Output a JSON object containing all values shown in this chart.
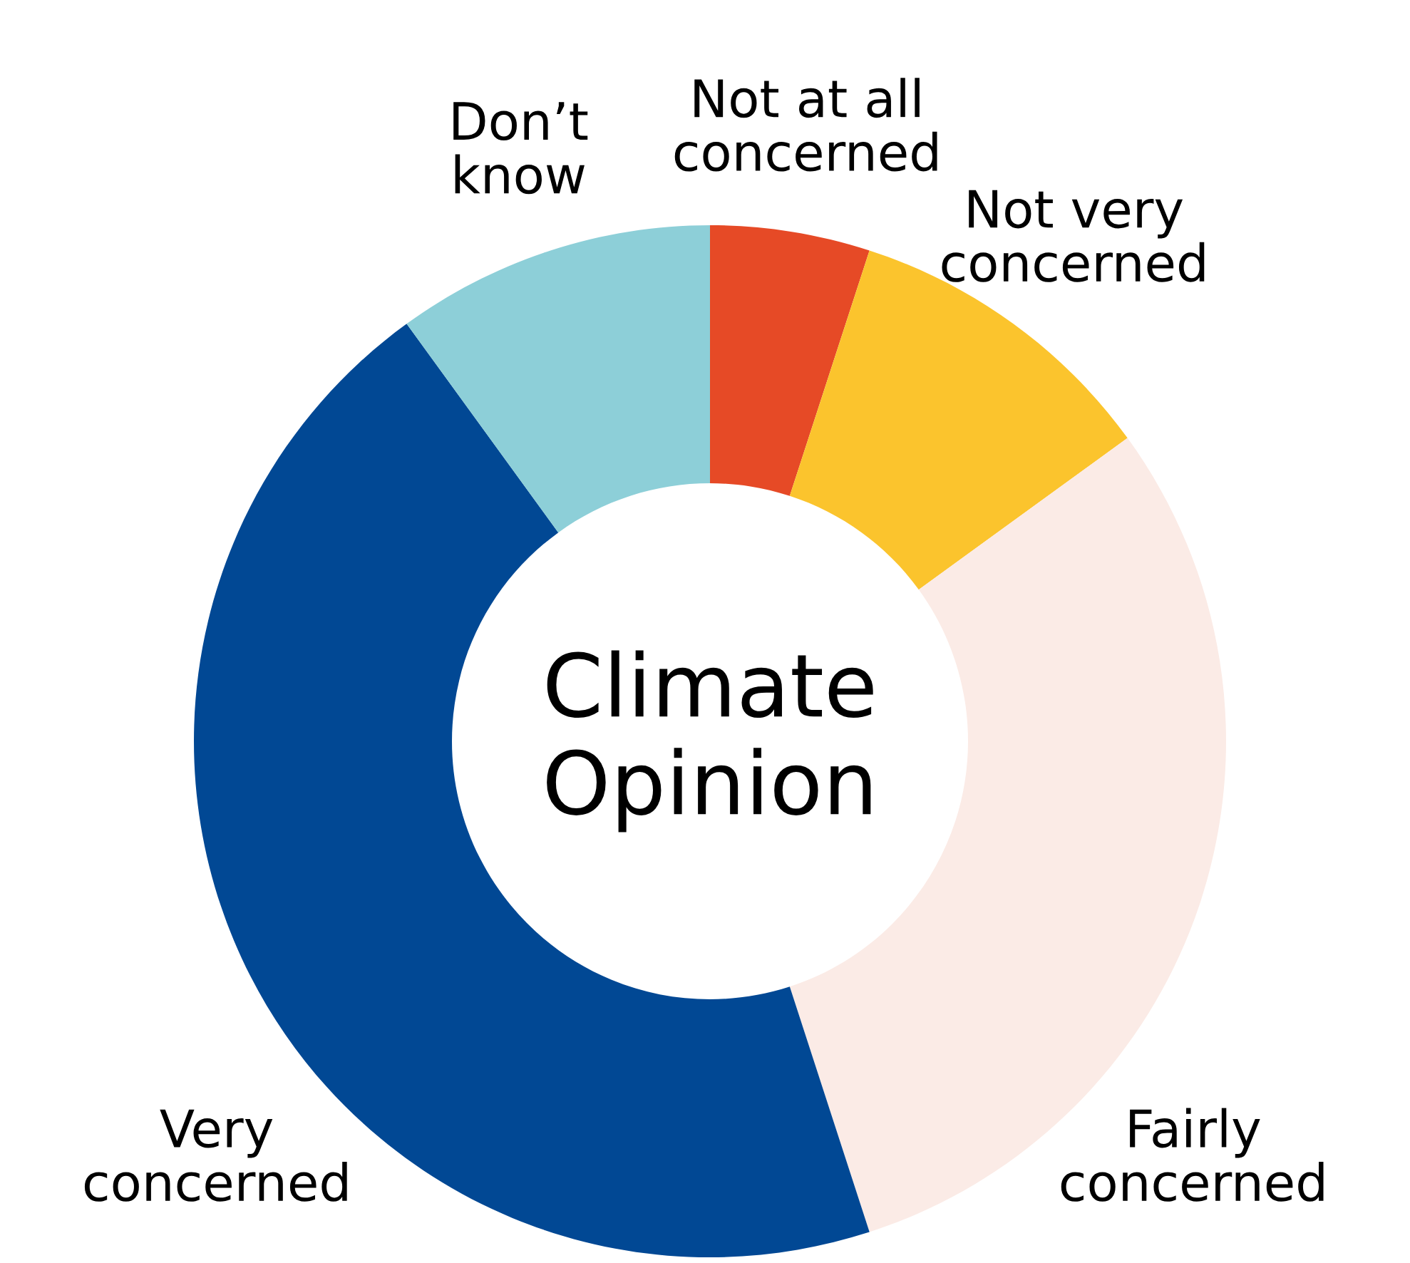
{
  "chart_data": {
    "type": "donut",
    "title": "Climate Opinion",
    "categories": [
      "Not at all concerned",
      "Not very concerned",
      "Fairly concerned",
      "Very concerned",
      "Don’t know"
    ],
    "values": [
      5,
      10,
      30,
      45,
      10
    ],
    "colors": [
      "#e64a26",
      "#fbc42d",
      "#fbebe6",
      "#014894",
      "#8dcfd8"
    ]
  }
}
